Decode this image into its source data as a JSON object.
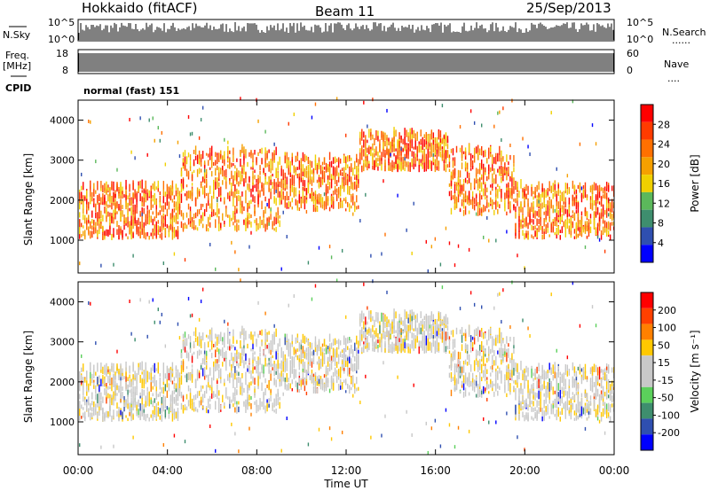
{
  "header": {
    "station": "Hokkaido (fitACF)",
    "beam": "Beam 11",
    "date": "25/Sep/2013"
  },
  "panel_labels": {
    "nsky": "N.Sky",
    "nsearch": "N.Search",
    "freq": "Freq.",
    "freq_unit": "[MHz]",
    "nave": "Nave",
    "cpid": "CPID",
    "cpid_value": "normal (fast) 151"
  },
  "noise_axis": {
    "left_top": "10^5",
    "left_bottom": "10^0",
    "right_top": "10^5",
    "right_bottom": "10^0"
  },
  "freq_axis": {
    "left_top": "18",
    "left_bottom": "8",
    "right_top": "60",
    "right_bottom": "0"
  },
  "range_ticks": [
    "1000",
    "2000",
    "3000",
    "4000"
  ],
  "time_ticks": [
    "00:00",
    "04:00",
    "08:00",
    "12:00",
    "16:00",
    "20:00",
    "00:00"
  ],
  "xlabel": "Time UT",
  "ylabel": "Slant Range [km]",
  "colors": {
    "power": [
      "#0000ff",
      "#2f4fb0",
      "#3e8e6e",
      "#5bb85b",
      "#f0d000",
      "#f5a000",
      "#ff7000",
      "#ff3b00",
      "#ff0000"
    ],
    "velocity": [
      "#0000ff",
      "#2f4fb0",
      "#3e8e6e",
      "#5bd05b",
      "#c8c8c8",
      "#c8c8c8",
      "#ffc800",
      "#ff8000",
      "#ff4000",
      "#ff0000"
    ]
  },
  "chart_data": [
    {
      "type": "heatmap",
      "title": "Power",
      "xlabel": "Time UT",
      "ylabel": "Slant Range [km]",
      "xlim": [
        "00:00",
        "24:00"
      ],
      "ylim": [
        180,
        4500
      ],
      "colorbar": {
        "label": "Power [dB]",
        "ticks": [
          "4",
          "8",
          "12",
          "16",
          "20",
          "24",
          "28"
        ],
        "range": [
          0,
          30
        ]
      },
      "scatter_bands": [
        {
          "t_start": 0.0,
          "t_end": 4.5,
          "range_km": [
            1000,
            2300
          ],
          "level": "high"
        },
        {
          "t_start": 4.5,
          "t_end": 9.0,
          "range_km": [
            1200,
            3200
          ],
          "level": "high"
        },
        {
          "t_start": 9.0,
          "t_end": 12.5,
          "range_km": [
            1700,
            3000
          ],
          "level": "high"
        },
        {
          "t_start": 12.5,
          "t_end": 16.5,
          "range_km": [
            2700,
            3600
          ],
          "level": "high"
        },
        {
          "t_start": 16.5,
          "t_end": 19.5,
          "range_km": [
            1600,
            3200
          ],
          "level": "high"
        },
        {
          "t_start": 19.5,
          "t_end": 24.0,
          "range_km": [
            1000,
            2300
          ],
          "level": "high"
        }
      ]
    },
    {
      "type": "heatmap",
      "title": "Velocity",
      "xlabel": "Time UT",
      "ylabel": "Slant Range [km]",
      "xlim": [
        "00:00",
        "24:00"
      ],
      "ylim": [
        180,
        4500
      ],
      "colorbar": {
        "label": "Velocity [m s⁻¹]",
        "ticks": [
          "200",
          "100",
          "50",
          "15",
          "-15",
          "-50",
          "-100",
          "-200"
        ],
        "range": [
          -250,
          250
        ]
      }
    }
  ]
}
